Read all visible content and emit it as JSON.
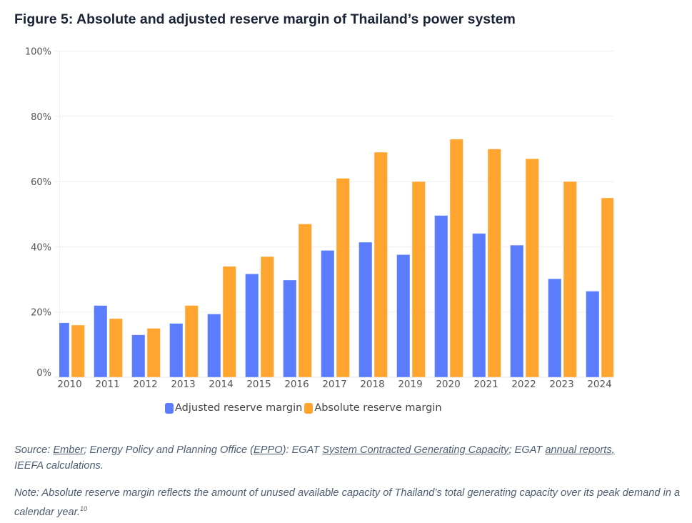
{
  "title": "Figure 5: Absolute and adjusted reserve margin of Thailand’s power system",
  "chart_data": {
    "type": "bar",
    "title": "Figure 5: Absolute and adjusted reserve margin of Thailand’s power system",
    "xlabel": "",
    "ylabel": "",
    "categories": [
      "2010",
      "2011",
      "2012",
      "2013",
      "2014",
      "2015",
      "2016",
      "2017",
      "2018",
      "2019",
      "2020",
      "2021",
      "2022",
      "2023",
      "2024"
    ],
    "series": [
      {
        "name": "Adjusted reserve margin",
        "color": "#5b7cfc",
        "values": [
          16.7,
          22.0,
          13.0,
          16.5,
          19.4,
          31.7,
          29.8,
          38.9,
          41.4,
          37.6,
          49.6,
          44.1,
          40.5,
          30.2,
          26.4
        ]
      },
      {
        "name": "Absolute reserve margin",
        "color": "#ffa52f",
        "values": [
          16,
          18,
          15,
          22,
          34,
          37,
          47,
          61,
          69,
          60,
          73,
          70,
          67,
          60,
          55
        ]
      }
    ],
    "ylim": [
      0,
      100
    ],
    "yticks": [
      0,
      20,
      40,
      60,
      80,
      100
    ],
    "ytick_labels": [
      "0%",
      "20%",
      "40%",
      "60%",
      "80%",
      "100%"
    ],
    "grid": true,
    "legend_position": "bottom-center"
  },
  "legend": [
    {
      "label": "Adjusted reserve margin",
      "color": "#5b7cfc"
    },
    {
      "label": "Absolute reserve margin",
      "color": "#ffa52f"
    }
  ],
  "source": {
    "prefix": "Source: ",
    "ember": "Ember",
    "sep1": "; Energy Policy and Planning Office (",
    "eppo": "EPPO",
    "sep2": "): EGAT ",
    "capacity": "System Contracted Generating Capacity",
    "sep3": "; EGAT ",
    "reports": "annual reports",
    "sep4": ",",
    "line2": "IEEFA calculations."
  },
  "note": {
    "text": "Note: Absolute reserve margin reflects the amount of unused available capacity of Thailand’s total generating capacity over its peak demand in a calendar year.",
    "footnote": "10"
  }
}
